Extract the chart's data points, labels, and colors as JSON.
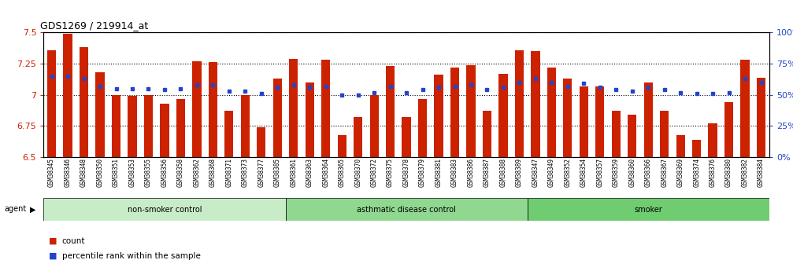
{
  "title": "GDS1269 / 219914_at",
  "samples": [
    "GSM38345",
    "GSM38346",
    "GSM38348",
    "GSM38350",
    "GSM38351",
    "GSM38353",
    "GSM38355",
    "GSM38356",
    "GSM38358",
    "GSM38362",
    "GSM38368",
    "GSM38371",
    "GSM38373",
    "GSM38377",
    "GSM38385",
    "GSM38361",
    "GSM38363",
    "GSM38364",
    "GSM38365",
    "GSM38370",
    "GSM38372",
    "GSM38375",
    "GSM38378",
    "GSM38379",
    "GSM38381",
    "GSM38383",
    "GSM38386",
    "GSM38387",
    "GSM38388",
    "GSM38389",
    "GSM38347",
    "GSM38349",
    "GSM38352",
    "GSM38354",
    "GSM38357",
    "GSM38359",
    "GSM38360",
    "GSM38366",
    "GSM38367",
    "GSM38369",
    "GSM38374",
    "GSM38376",
    "GSM38380",
    "GSM38382",
    "GSM38384"
  ],
  "bar_values": [
    7.36,
    7.49,
    7.38,
    7.18,
    7.0,
    6.99,
    7.0,
    6.93,
    6.97,
    7.27,
    7.26,
    6.87,
    7.0,
    6.74,
    7.13,
    7.29,
    7.1,
    7.28,
    6.68,
    6.82,
    7.0,
    7.23,
    6.82,
    6.97,
    7.16,
    7.22,
    7.24,
    6.87,
    7.17,
    7.36,
    7.35,
    7.22,
    7.13,
    7.07,
    7.07,
    6.87,
    6.84,
    7.1,
    6.87,
    6.68,
    6.64,
    6.77,
    6.94,
    7.28,
    7.14
  ],
  "percentile_values": [
    65,
    65,
    63,
    57,
    55,
    55,
    55,
    54,
    55,
    58,
    58,
    53,
    53,
    51,
    56,
    58,
    56,
    57,
    50,
    50,
    52,
    57,
    52,
    54,
    56,
    57,
    58,
    54,
    56,
    60,
    63,
    60,
    57,
    59,
    56,
    54,
    53,
    56,
    54,
    52,
    51,
    51,
    52,
    63,
    60
  ],
  "groups": [
    {
      "label": "non-smoker control",
      "start": 0,
      "end": 15,
      "color": "#c8ecc8"
    },
    {
      "label": "asthmatic disease control",
      "start": 15,
      "end": 30,
      "color": "#90d890"
    },
    {
      "label": "smoker",
      "start": 30,
      "end": 45,
      "color": "#70cc70"
    }
  ],
  "ylim_left": [
    6.5,
    7.5
  ],
  "ylim_right": [
    0,
    100
  ],
  "bar_color": "#cc2200",
  "dot_color": "#2244cc",
  "background_color": "#ffffff",
  "tick_area_color": "#d8d8d8",
  "yticks_left": [
    6.5,
    6.75,
    7.0,
    7.25,
    7.5
  ],
  "yticks_right": [
    0,
    25,
    50,
    75,
    100
  ],
  "ytick_labels_left": [
    "6.5",
    "6.75",
    "7",
    "7.25",
    "7.5"
  ],
  "ytick_labels_right": [
    "0%",
    "25%",
    "50%",
    "75%",
    "100%"
  ]
}
